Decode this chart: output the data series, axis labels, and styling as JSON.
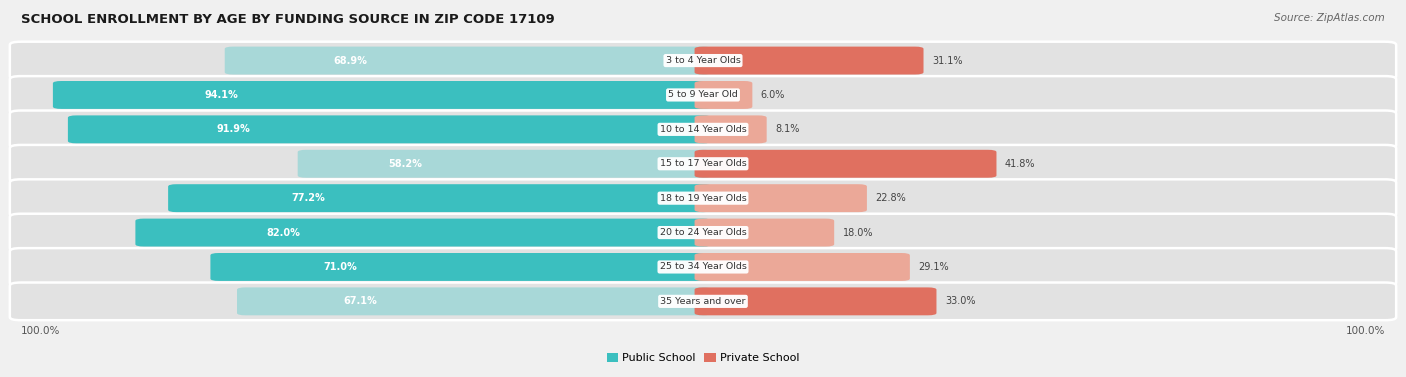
{
  "title": "SCHOOL ENROLLMENT BY AGE BY FUNDING SOURCE IN ZIP CODE 17109",
  "source": "Source: ZipAtlas.com",
  "categories": [
    "3 to 4 Year Olds",
    "5 to 9 Year Old",
    "10 to 14 Year Olds",
    "15 to 17 Year Olds",
    "18 to 19 Year Olds",
    "20 to 24 Year Olds",
    "25 to 34 Year Olds",
    "35 Years and over"
  ],
  "public": [
    68.9,
    94.1,
    91.9,
    58.2,
    77.2,
    82.0,
    71.0,
    67.1
  ],
  "private": [
    31.1,
    6.0,
    8.1,
    41.8,
    22.8,
    18.0,
    29.1,
    33.0
  ],
  "public_color_strong": "#3BBFBF",
  "public_color_light": "#A8D8D8",
  "private_color_strong": "#E07060",
  "private_color_light": "#EBA898",
  "bg_color": "#F0F0F0",
  "row_bg": "#E8E8E8",
  "legend_public": "Public School",
  "legend_private": "Private School",
  "pub_strong_threshold": 70,
  "priv_strong_threshold": 30
}
